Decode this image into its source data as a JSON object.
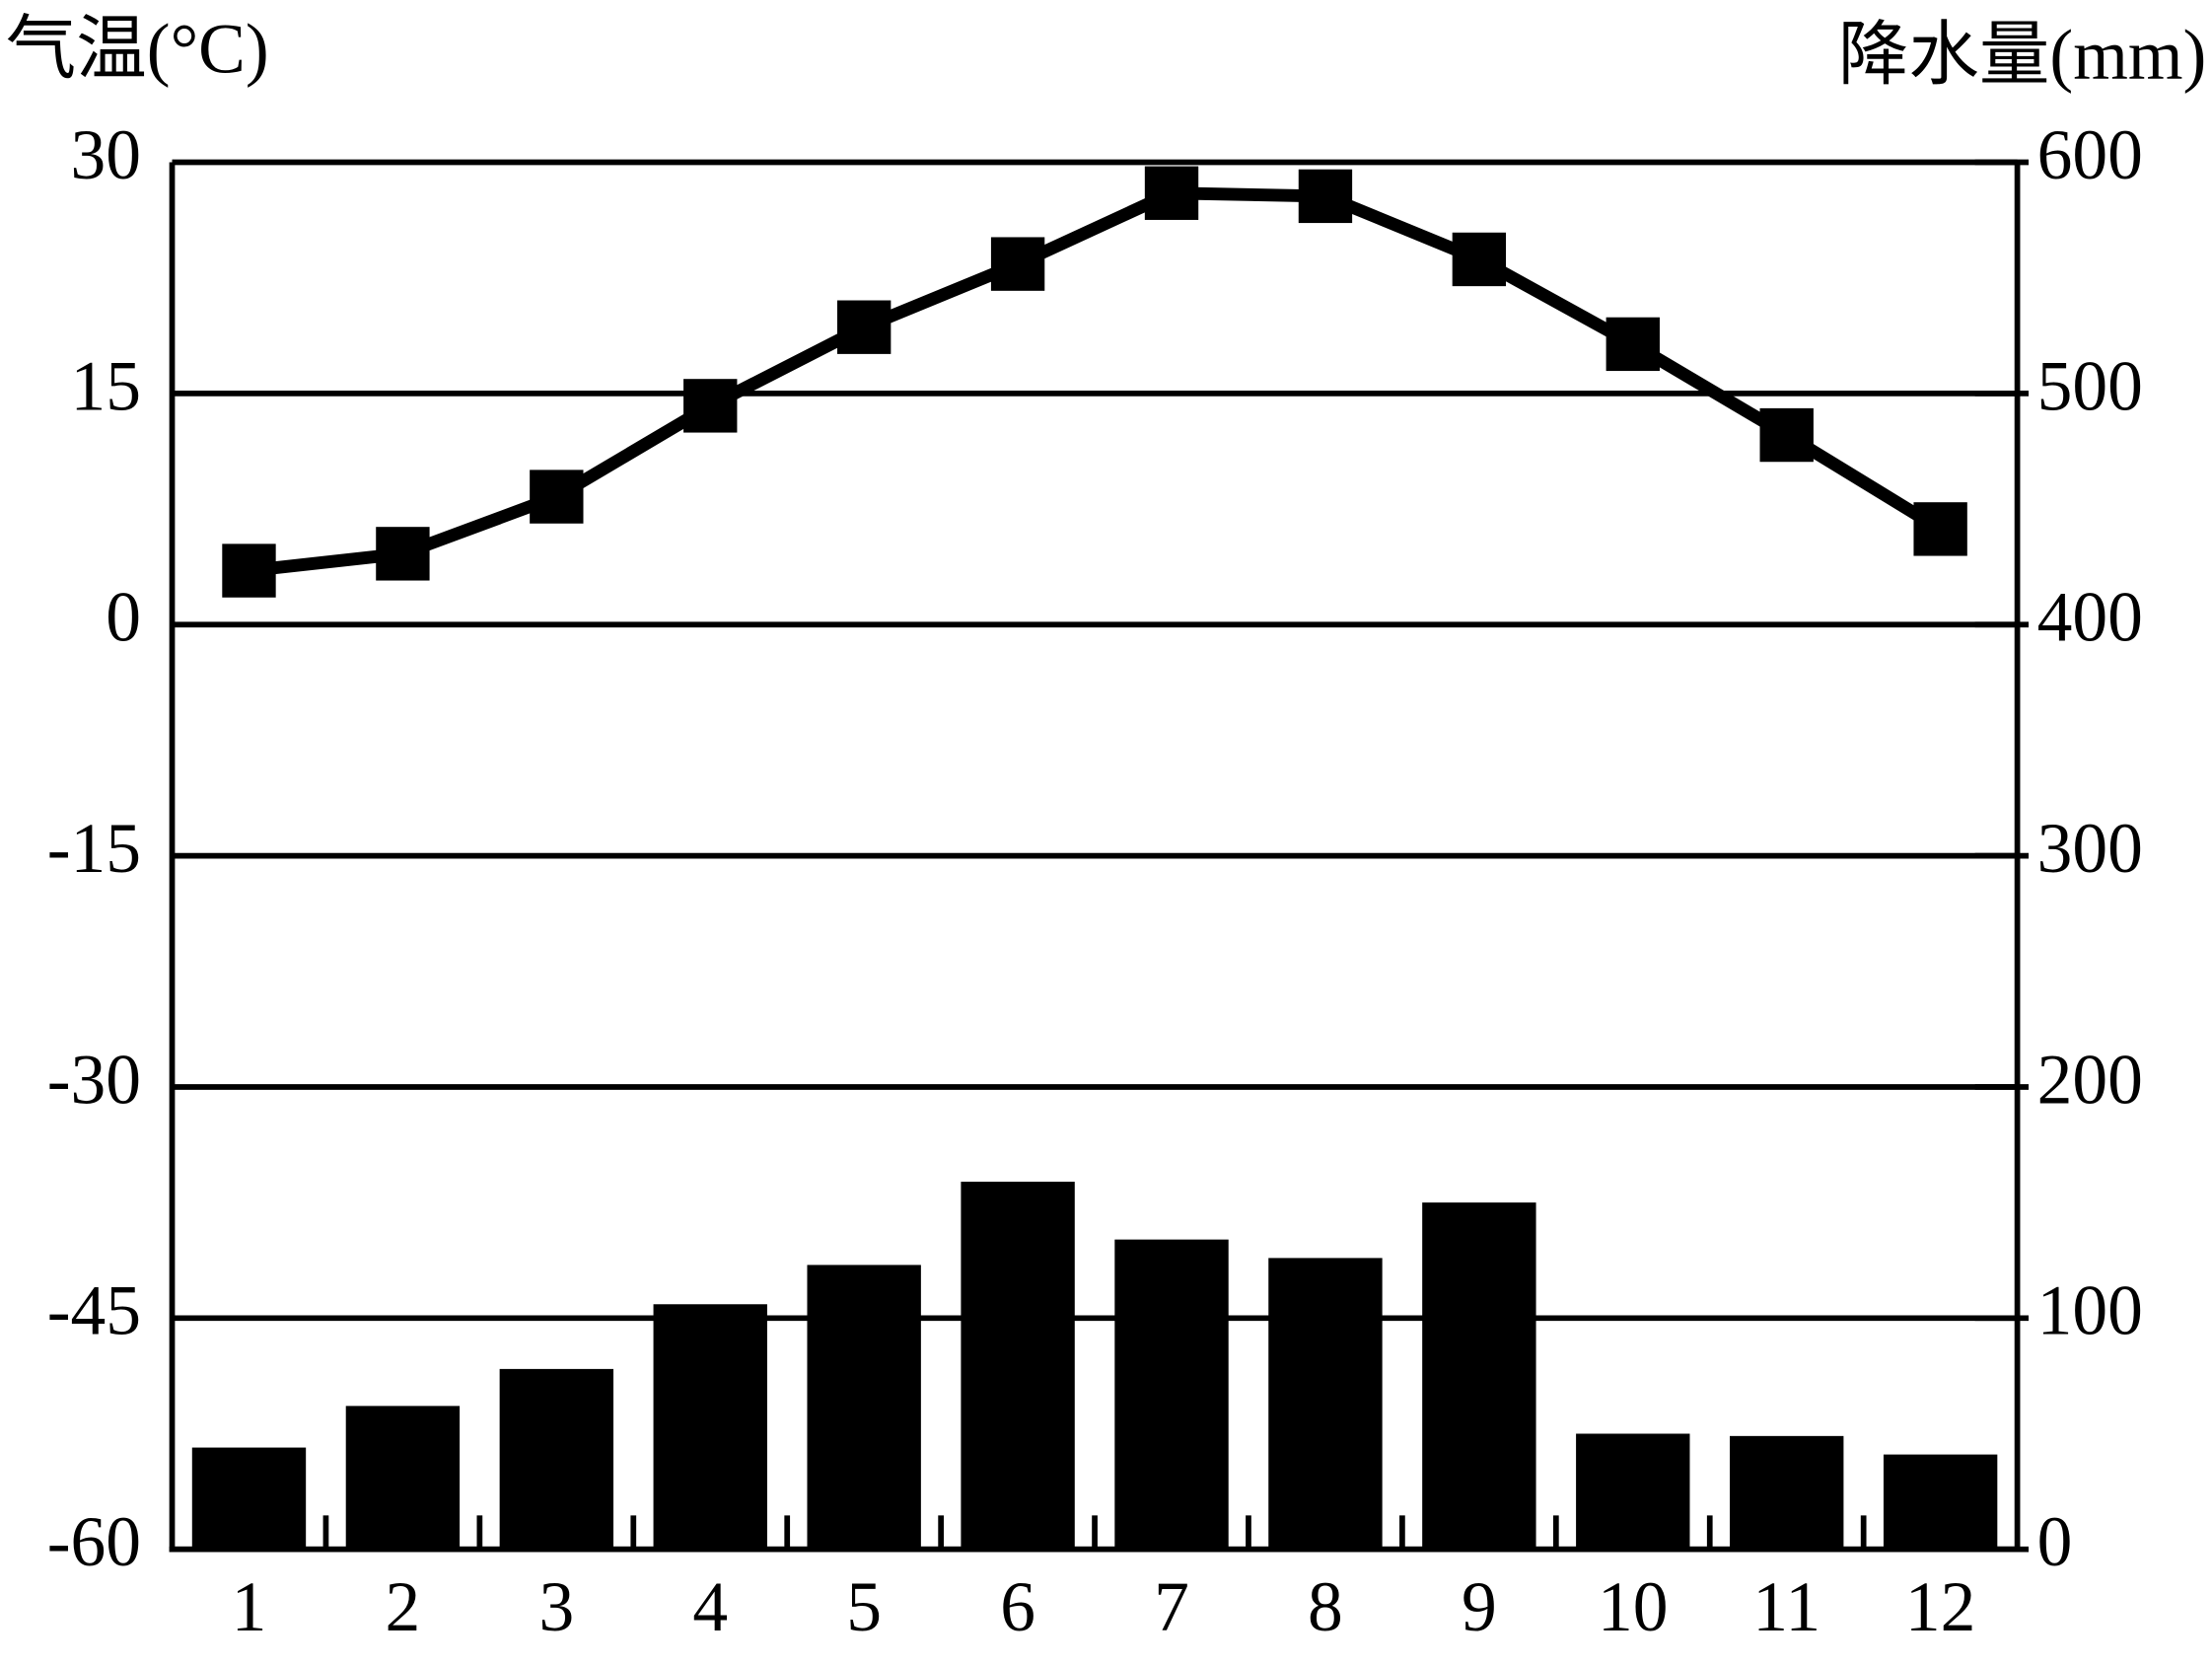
{
  "chart_data": {
    "type": "bar",
    "y_label": "气温(°C)",
    "y2_label": "降水量(mm)",
    "categories": [
      "1",
      "2",
      "3",
      "4",
      "5",
      "6",
      "7",
      "8",
      "9",
      "10",
      "11",
      "12"
    ],
    "series": [
      {
        "name": "降水量",
        "type": "bar",
        "axis": "y2",
        "color": "#000000",
        "values": [
          44,
          62,
          78,
          106,
          123,
          159,
          134,
          126,
          150,
          50,
          49,
          41
        ]
      },
      {
        "name": "气温",
        "type": "line",
        "axis": "y",
        "color": "#000000",
        "values": [
          3.5,
          4.6,
          8.3,
          14.2,
          19.3,
          23.4,
          28.0,
          27.8,
          23.7,
          18.2,
          12.3,
          6.2
        ]
      }
    ],
    "ylim": [
      -60,
      30
    ],
    "yticks": [
      -60,
      -45,
      -30,
      -15,
      0,
      15,
      30
    ],
    "y2lim": [
      0,
      600
    ],
    "y2ticks": [
      0,
      100,
      200,
      300,
      400,
      500,
      600
    ],
    "grid": true
  }
}
